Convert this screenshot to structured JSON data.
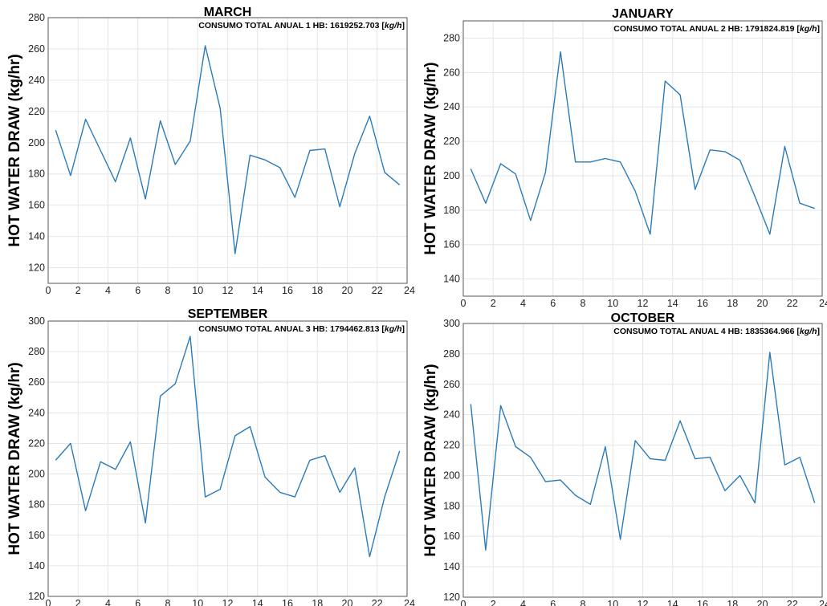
{
  "chart_data": [
    {
      "type": "line",
      "title": "MARCH",
      "annotation": {
        "text": "CONSUMO TOTAL ANUAL 1 HB:  1619252.703 ",
        "unit": "kg/h"
      },
      "ylabel": "HOT WATER DRAW (kg/hr)",
      "xlim": [
        0,
        24
      ],
      "ylim": [
        110,
        280
      ],
      "xticks": [
        0,
        2,
        4,
        6,
        8,
        10,
        12,
        14,
        16,
        18,
        20,
        22,
        24
      ],
      "yticks": [
        120,
        140,
        160,
        180,
        200,
        220,
        240,
        260,
        280
      ],
      "grid": true,
      "color": "#2b7bba",
      "x": [
        0.5,
        1.5,
        2.5,
        3.5,
        4.5,
        5.5,
        6.5,
        7.5,
        8.5,
        9.5,
        10.5,
        11.5,
        12.5,
        13.5,
        14.5,
        15.5,
        16.5,
        17.5,
        18.5,
        19.5,
        20.5,
        21.5,
        22.5,
        23.5
      ],
      "y": [
        208,
        179,
        215,
        195,
        175,
        203,
        164,
        214,
        186,
        201,
        262,
        222,
        129,
        192,
        189,
        184,
        165,
        195,
        196,
        159,
        193,
        217,
        181,
        173
      ]
    },
    {
      "type": "line",
      "title": "JANUARY",
      "annotation": {
        "text": "CONSUMO TOTAL ANUAL 2 HB:  1791824.819 ",
        "unit": "kg/h"
      },
      "ylabel": "HOT WATER DRAW (kg/hr)",
      "xlim": [
        0,
        24
      ],
      "ylim": [
        130,
        290
      ],
      "xticks": [
        0,
        2,
        4,
        6,
        8,
        10,
        12,
        14,
        16,
        18,
        20,
        22,
        24
      ],
      "yticks": [
        140,
        160,
        180,
        200,
        220,
        240,
        260,
        280
      ],
      "grid": true,
      "color": "#2b7bba",
      "x": [
        0.5,
        1.5,
        2.5,
        3.5,
        4.5,
        5.5,
        6.5,
        7.5,
        8.5,
        9.5,
        10.5,
        11.5,
        12.5,
        13.5,
        14.5,
        15.5,
        16.5,
        17.5,
        18.5,
        19.5,
        20.5,
        21.5,
        22.5,
        23.5
      ],
      "y": [
        204,
        184,
        207,
        201,
        174,
        202,
        272,
        208,
        208,
        210,
        208,
        191,
        166,
        255,
        247,
        192,
        215,
        214,
        209,
        188,
        166,
        217,
        184,
        181
      ]
    },
    {
      "type": "line",
      "title": "SEPTEMBER",
      "annotation": {
        "text": "CONSUMO TOTAL ANUAL 3 HB:  1794462.813 ",
        "unit": "kg/h"
      },
      "ylabel": "HOT WATER DRAW (kg/hr)",
      "xlim": [
        0,
        24
      ],
      "ylim": [
        120,
        300
      ],
      "xticks": [
        0,
        2,
        4,
        6,
        8,
        10,
        12,
        14,
        16,
        18,
        20,
        22,
        24
      ],
      "yticks": [
        120,
        140,
        160,
        180,
        200,
        220,
        240,
        260,
        280,
        300
      ],
      "grid": true,
      "color": "#2b7bba",
      "x": [
        0.5,
        1.5,
        2.5,
        3.5,
        4.5,
        5.5,
        6.5,
        7.5,
        8.5,
        9.5,
        10.5,
        11.5,
        12.5,
        13.5,
        14.5,
        15.5,
        16.5,
        17.5,
        18.5,
        19.5,
        20.5,
        21.5,
        22.5,
        23.5
      ],
      "y": [
        209,
        220,
        176,
        208,
        203,
        221,
        168,
        251,
        259,
        290,
        185,
        190,
        225,
        231,
        198,
        188,
        185,
        209,
        212,
        188,
        204,
        146,
        185,
        215
      ]
    },
    {
      "type": "line",
      "title": "OCTOBER",
      "annotation": {
        "text": "CONSUMO TOTAL ANUAL 4 HB: 1835364.966 ",
        "unit": "kg/h"
      },
      "ylabel": "HOT WATER DRAW (kg/hr)",
      "xlim": [
        0,
        24
      ],
      "ylim": [
        120,
        300
      ],
      "xticks": [
        0,
        2,
        4,
        6,
        8,
        10,
        12,
        14,
        16,
        18,
        20,
        22,
        24
      ],
      "yticks": [
        120,
        140,
        160,
        180,
        200,
        220,
        240,
        260,
        280,
        300
      ],
      "grid": true,
      "color": "#2b7bba",
      "x": [
        0.5,
        1.5,
        2.5,
        3.5,
        4.5,
        5.5,
        6.5,
        7.5,
        8.5,
        9.5,
        10.5,
        11.5,
        12.5,
        13.5,
        14.5,
        15.5,
        16.5,
        17.5,
        18.5,
        19.5,
        20.5,
        21.5,
        22.5,
        23.5
      ],
      "y": [
        247,
        151,
        246,
        219,
        212,
        196,
        197,
        187,
        181,
        219,
        158,
        223,
        211,
        210,
        236,
        211,
        212,
        190,
        200,
        182,
        281,
        207,
        212,
        182
      ]
    }
  ]
}
